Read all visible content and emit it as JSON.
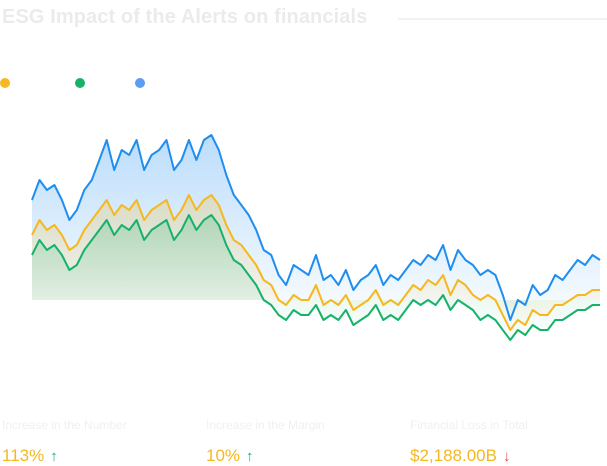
{
  "title": "ESG Impact of the Alerts on financials",
  "colors": {
    "yellow": "#f5b820",
    "green": "#17b26a",
    "blue": "#1f8ef1",
    "blue_dot": "#5b9cf4"
  },
  "stats": [
    {
      "label": "Increase in the Number",
      "value": "113%",
      "direction": "up",
      "arrow": "↑"
    },
    {
      "label": "Increase in the Margin",
      "value": "10%",
      "direction": "up",
      "arrow": "↑"
    },
    {
      "label": "Financial Loss in Total",
      "value": "$2,188.00B",
      "direction": "down",
      "arrow": "↓"
    }
  ],
  "chart_data": {
    "type": "line",
    "ylim": [
      80,
      130
    ],
    "series": [
      {
        "color": "#1f8ef1",
        "values": [
          112,
          116,
          114,
          115,
          112,
          108,
          110,
          114,
          116,
          120,
          124,
          118,
          122,
          121,
          124,
          118,
          121,
          122,
          124,
          118,
          120,
          124,
          120,
          124,
          125,
          122,
          117,
          113,
          111,
          109,
          106,
          102,
          101,
          97,
          95,
          99,
          98,
          97,
          101,
          96,
          97,
          95,
          98,
          94,
          96,
          97,
          99,
          95,
          97,
          96,
          98,
          100,
          99,
          101,
          100,
          103,
          98,
          102,
          100,
          99,
          97,
          98,
          97,
          93,
          88,
          92,
          91,
          95,
          93,
          94,
          97,
          96,
          98,
          100,
          99,
          101,
          100
        ]
      },
      {
        "color": "#f5b820",
        "values": [
          105,
          108,
          106,
          107,
          105,
          102,
          103,
          106,
          108,
          110,
          112,
          109,
          111,
          110,
          112,
          108,
          110,
          111,
          112,
          108,
          110,
          113,
          110,
          112,
          113,
          111,
          107,
          104,
          103,
          101,
          99,
          96,
          95,
          92,
          91,
          93,
          92,
          92,
          95,
          91,
          92,
          91,
          93,
          90,
          91,
          92,
          94,
          91,
          92,
          91,
          93,
          95,
          94,
          96,
          95,
          97,
          93,
          96,
          95,
          93,
          92,
          93,
          92,
          89,
          86,
          88,
          87,
          90,
          89,
          89,
          91,
          91,
          92,
          93,
          93,
          94,
          94
        ]
      },
      {
        "color": "#17b26a",
        "values": [
          101,
          104,
          102,
          103,
          101,
          98,
          99,
          102,
          104,
          106,
          108,
          105,
          107,
          106,
          108,
          104,
          106,
          107,
          108,
          104,
          106,
          109,
          106,
          108,
          109,
          107,
          103,
          100,
          99,
          97,
          95,
          92,
          91,
          89,
          88,
          90,
          89,
          89,
          91,
          88,
          89,
          88,
          90,
          87,
          88,
          89,
          91,
          88,
          89,
          88,
          90,
          92,
          91,
          92,
          91,
          93,
          90,
          92,
          91,
          90,
          88,
          89,
          88,
          86,
          84,
          86,
          85,
          87,
          86,
          86,
          88,
          88,
          89,
          90,
          90,
          91,
          91
        ]
      }
    ]
  }
}
